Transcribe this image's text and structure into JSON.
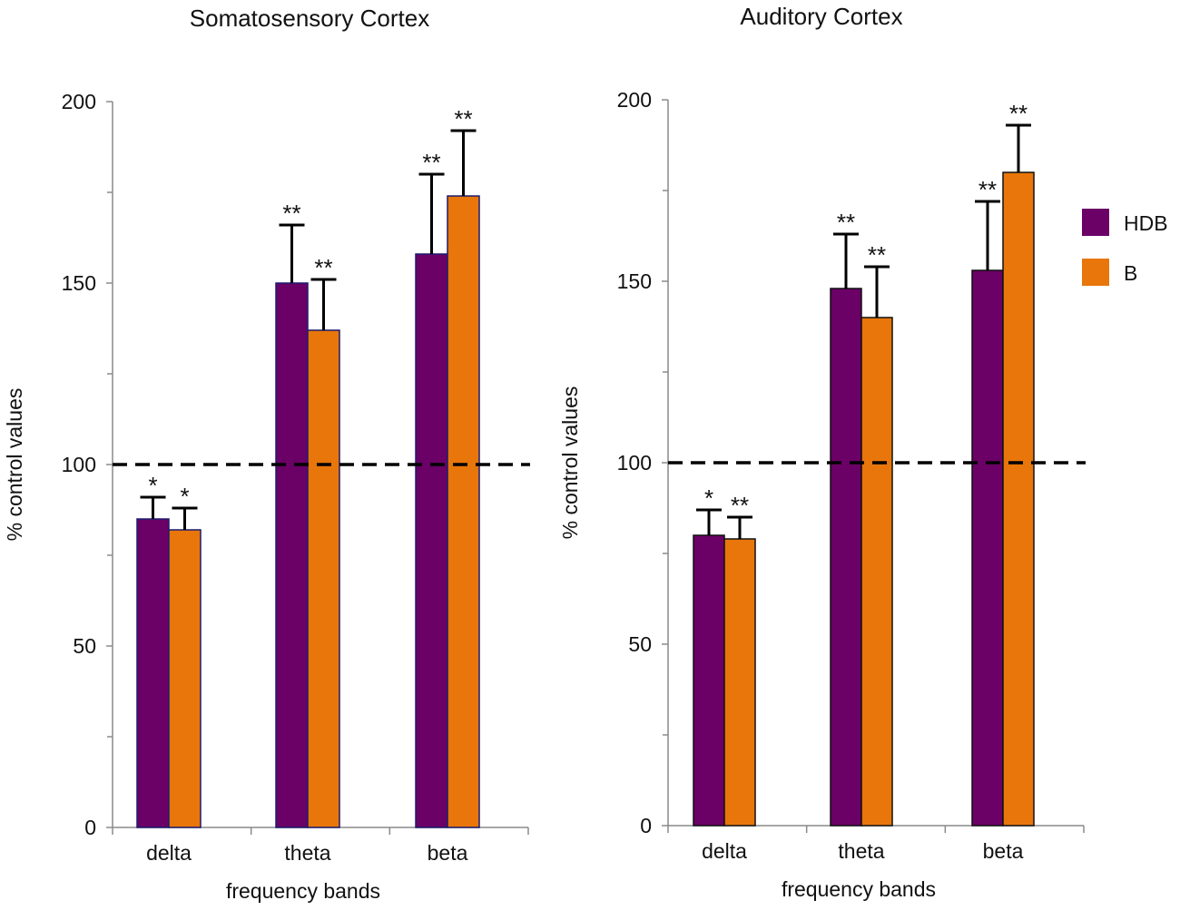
{
  "chart_data": [
    {
      "type": "bar",
      "title": "Somatosensory Cortex",
      "xlabel": "frequency bands",
      "ylabel": "% control values",
      "ylim": [
        0,
        200
      ],
      "yticks": [
        0,
        50,
        100,
        150,
        200
      ],
      "reference_line": 100,
      "categories": [
        "delta",
        "theta",
        "beta"
      ],
      "series": [
        {
          "name": "HDB",
          "color": "#6B0066",
          "values": [
            85,
            150,
            158
          ],
          "errors": [
            6,
            16,
            22
          ],
          "significance": [
            "*",
            "**",
            "**"
          ]
        },
        {
          "name": "B",
          "color": "#E8760A",
          "values": [
            82,
            137,
            174
          ],
          "errors": [
            6,
            14,
            18
          ],
          "significance": [
            "*",
            "**",
            "**"
          ]
        }
      ]
    },
    {
      "type": "bar",
      "title": "Auditory Cortex",
      "xlabel": "frequency bands",
      "ylabel": "% control values",
      "ylim": [
        0,
        200
      ],
      "yticks": [
        0,
        50,
        100,
        150,
        200
      ],
      "reference_line": 100,
      "categories": [
        "delta",
        "theta",
        "beta"
      ],
      "legend_position": "right",
      "series": [
        {
          "name": "HDB",
          "color": "#6B0066",
          "values": [
            80,
            148,
            153
          ],
          "errors": [
            7,
            15,
            19
          ],
          "significance": [
            "*",
            "**",
            "**"
          ]
        },
        {
          "name": "B",
          "color": "#E8760A",
          "values": [
            79,
            140,
            180
          ],
          "errors": [
            6,
            14,
            13
          ],
          "significance": [
            "**",
            "**",
            "**"
          ]
        }
      ]
    }
  ]
}
